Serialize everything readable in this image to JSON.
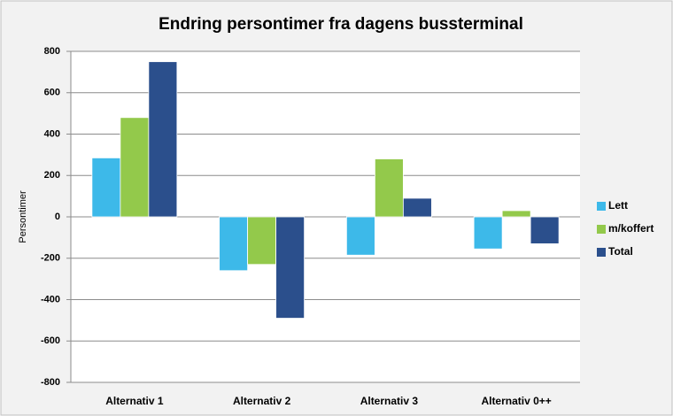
{
  "chart_data": {
    "type": "bar",
    "title": "Endring persontimer fra dagens bussterminal",
    "y_label": "Persontimer",
    "categories": [
      "Alternativ 1",
      "Alternativ 2",
      "Alternativ 3",
      "Alternativ 0++"
    ],
    "series": [
      {
        "name": "Lett",
        "color": "#3db9e9",
        "values": [
          285,
          -260,
          -185,
          -155
        ]
      },
      {
        "name": "m/koffert",
        "color": "#93c94b",
        "values": [
          480,
          -230,
          280,
          30
        ]
      },
      {
        "name": "Total",
        "color": "#2b4f8c",
        "values": [
          750,
          -490,
          90,
          -130
        ]
      }
    ],
    "ylim": [
      -800,
      800
    ],
    "yticks": [
      -800,
      -600,
      -400,
      -200,
      0,
      200,
      400,
      600,
      800
    ],
    "grid": true,
    "legend": "right"
  }
}
